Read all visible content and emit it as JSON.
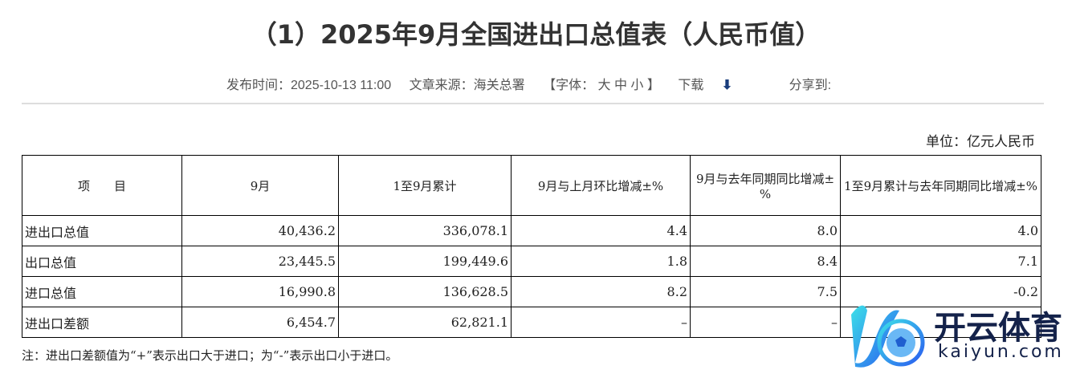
{
  "title": "（1）2025年9月全国进出口总值表（人民币值）",
  "meta": {
    "published": "发布时间：2025-10-13 11:00",
    "source": "文章来源：海关总署",
    "font": "【字体：  大  中  小 】",
    "download": "下载",
    "share": "分享到:"
  },
  "unit": "单位：亿元人民币",
  "headers": [
    "项　　目",
    "9月",
    "1至9月累计",
    "9月与上月环比增减±%",
    "9月与去年同期同比增减±%",
    "1至9月累计与去年同期同比增减±%"
  ],
  "rows": [
    [
      "进出口总值",
      "40,436.2",
      "336,078.1",
      "4.4",
      "8.0",
      "4.0"
    ],
    [
      "出口总值",
      "23,445.5",
      "199,449.6",
      "1.8",
      "8.4",
      "7.1"
    ],
    [
      "进口总值",
      "16,990.8",
      "136,628.5",
      "8.2",
      "7.5",
      "-0.2"
    ],
    [
      "进出口差额",
      "6,454.7",
      "62,821.1",
      "–",
      "–",
      ""
    ]
  ],
  "note": "注：进出口差额值为“+”表示出口大于进口；为“-”表示出口小于进口。",
  "logo": {
    "cn": "开云体育",
    "en": "kaiyun.com"
  }
}
